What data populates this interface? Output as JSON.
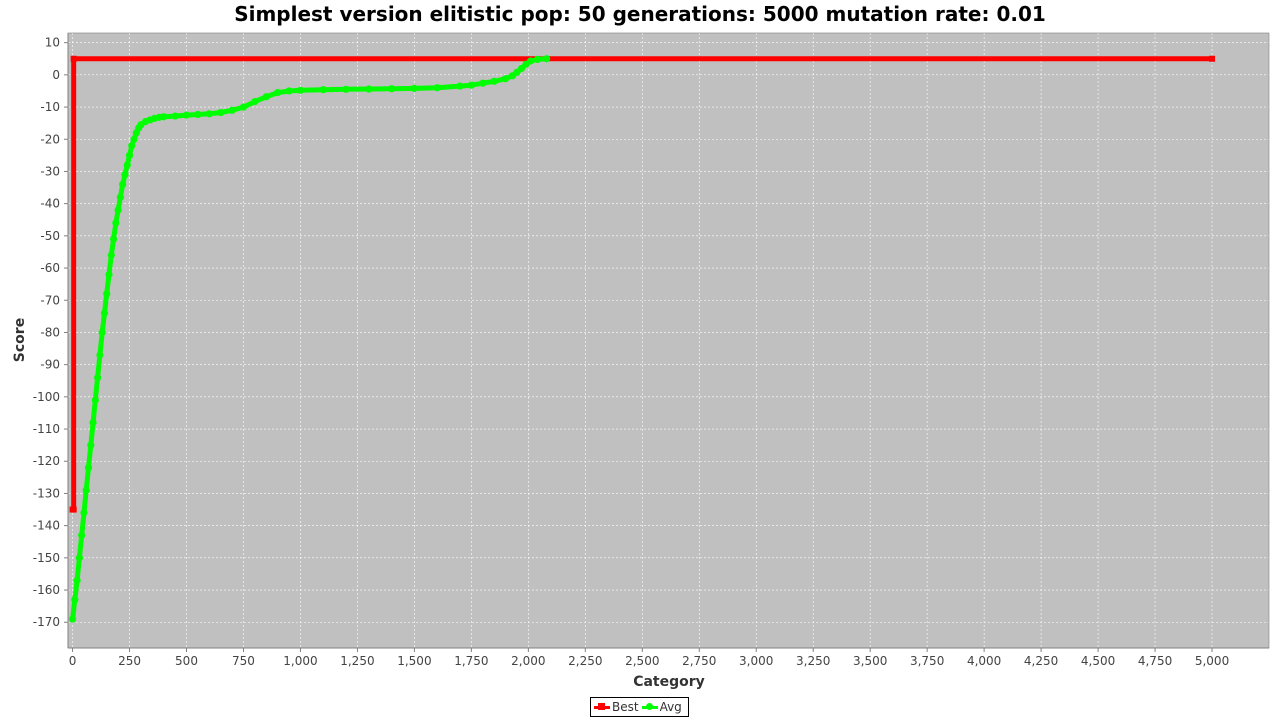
{
  "chart_data": {
    "type": "line",
    "title": "Simplest version elitistic pop: 50 generations: 5000 mutation rate: 0.01",
    "xlabel": "Category",
    "ylabel": "Score",
    "xlim": [
      -20,
      5250
    ],
    "ylim": [
      -178,
      13
    ],
    "xticks": [
      0,
      250,
      500,
      750,
      1000,
      1250,
      1500,
      1750,
      2000,
      2250,
      2500,
      2750,
      3000,
      3250,
      3500,
      3750,
      4000,
      4250,
      4500,
      4750,
      5000
    ],
    "xtick_labels": [
      "0",
      "250",
      "500",
      "750",
      "1,000",
      "1,250",
      "1,500",
      "1,750",
      "2,000",
      "2,250",
      "2,500",
      "2,750",
      "3,000",
      "3,250",
      "3,500",
      "3,750",
      "4,000",
      "4,250",
      "4,500",
      "4,750",
      "5,000"
    ],
    "yticks": [
      10,
      0,
      -10,
      -20,
      -30,
      -40,
      -50,
      -60,
      -70,
      -80,
      -90,
      -100,
      -110,
      -120,
      -130,
      -140,
      -150,
      -160,
      -170
    ],
    "grid": true,
    "background": "#c0c0c0",
    "legend_position": "bottom-center",
    "series": [
      {
        "name": "Best",
        "color": "#ff0000",
        "marker": "square",
        "x": [
          0,
          5,
          5,
          5000
        ],
        "y": [
          -135,
          -135,
          5,
          5
        ]
      },
      {
        "name": "Avg",
        "color": "#00ff00",
        "marker": "circle",
        "x": [
          0,
          10,
          20,
          30,
          40,
          50,
          60,
          70,
          80,
          90,
          100,
          110,
          120,
          130,
          140,
          150,
          160,
          170,
          180,
          190,
          200,
          210,
          220,
          230,
          240,
          250,
          260,
          270,
          280,
          290,
          300,
          320,
          340,
          360,
          380,
          400,
          450,
          500,
          550,
          600,
          650,
          700,
          750,
          800,
          850,
          900,
          950,
          1000,
          1100,
          1200,
          1300,
          1400,
          1500,
          1600,
          1700,
          1750,
          1800,
          1850,
          1900,
          1930,
          1950,
          1970,
          1990,
          2010,
          2040,
          2080
        ],
        "y": [
          -169,
          -163,
          -157,
          -150,
          -143,
          -136,
          -129,
          -122,
          -115,
          -108,
          -101,
          -94,
          -87,
          -80,
          -74,
          -68,
          -62,
          -56,
          -51,
          -46,
          -42,
          -38,
          -34,
          -31,
          -28,
          -25,
          -22,
          -20,
          -18,
          -16.5,
          -15.5,
          -14.5,
          -14,
          -13.5,
          -13.2,
          -13,
          -12.8,
          -12.5,
          -12.3,
          -12.1,
          -11.7,
          -11,
          -10,
          -8.3,
          -6.8,
          -5.5,
          -5,
          -4.8,
          -4.6,
          -4.5,
          -4.4,
          -4.3,
          -4.2,
          -4,
          -3.5,
          -3.2,
          -2.6,
          -2,
          -1.2,
          -0.3,
          0.8,
          2,
          3.3,
          4.3,
          4.8,
          5
        ]
      }
    ]
  }
}
